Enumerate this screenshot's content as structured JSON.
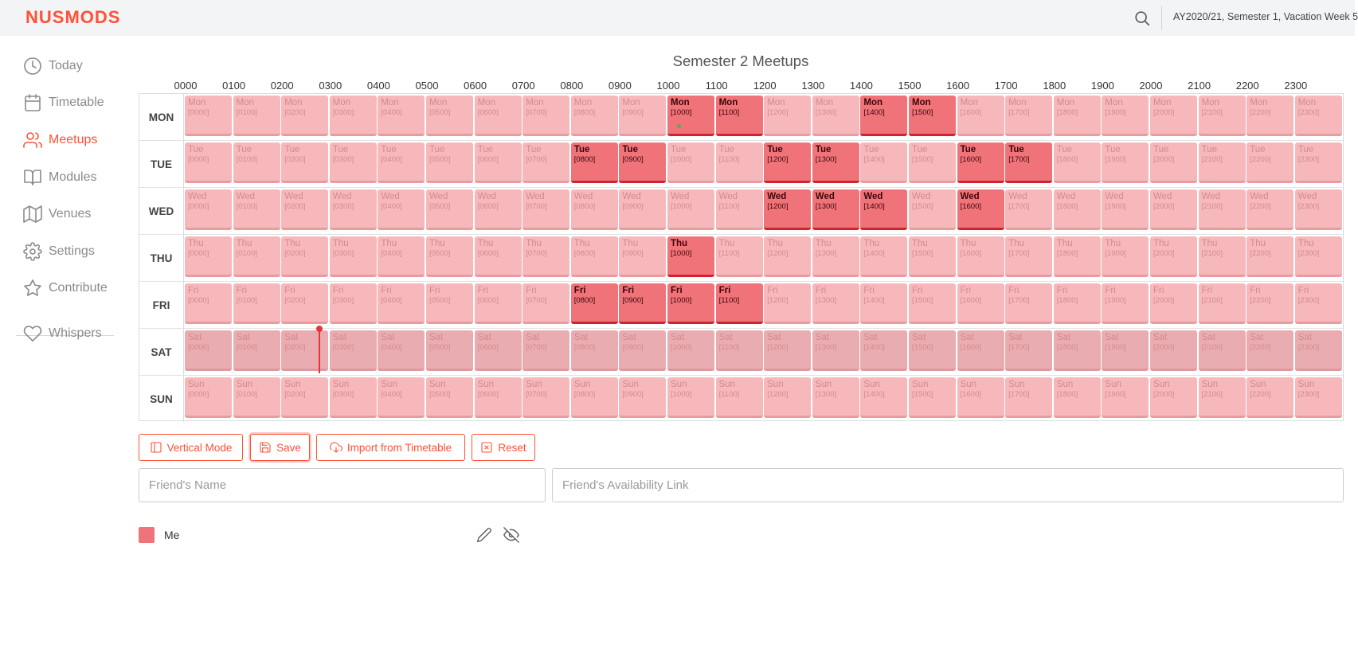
{
  "app": {
    "logo": "NUSMODS",
    "semester_label": "AY2020/21, Semester 1, Vacation Week 5",
    "accent_color": "#ff5138"
  },
  "sidebar": {
    "items": [
      {
        "label": "Today",
        "icon": "clock-icon",
        "active": false
      },
      {
        "label": "Timetable",
        "icon": "calendar-icon",
        "active": false
      },
      {
        "label": "Meetups",
        "icon": "users-icon",
        "active": true
      },
      {
        "label": "Modules",
        "icon": "book-icon",
        "active": false
      },
      {
        "label": "Venues",
        "icon": "map-icon",
        "active": false
      },
      {
        "label": "Settings",
        "icon": "gear-icon",
        "active": false
      },
      {
        "label": "Contribute",
        "icon": "star-icon",
        "active": false
      },
      {
        "label": "Whispers",
        "icon": "heart-icon",
        "active": false
      }
    ]
  },
  "meetups": {
    "title": "Semester 2 Meetups",
    "hours": [
      "0000",
      "0100",
      "0200",
      "0300",
      "0400",
      "0500",
      "0600",
      "0700",
      "0800",
      "0900",
      "1000",
      "1100",
      "1200",
      "1300",
      "1400",
      "1500",
      "1600",
      "1700",
      "1800",
      "1900",
      "2000",
      "2100",
      "2200",
      "2300"
    ],
    "days": [
      {
        "label": "MON",
        "short": "Mon",
        "busy": [
          "1000",
          "1100",
          "1400",
          "1500"
        ]
      },
      {
        "label": "TUE",
        "short": "Tue",
        "busy": [
          "0800",
          "0900",
          "1200",
          "1300",
          "1600",
          "1700"
        ]
      },
      {
        "label": "WED",
        "short": "Wed",
        "busy": [
          "1200",
          "1300",
          "1400",
          "1600"
        ]
      },
      {
        "label": "THU",
        "short": "Thu",
        "busy": [
          "1000"
        ]
      },
      {
        "label": "FRI",
        "short": "Fri",
        "busy": [
          "0800",
          "0900",
          "1000",
          "1100"
        ]
      },
      {
        "label": "SAT",
        "short": "Sat",
        "busy": []
      },
      {
        "label": "SUN",
        "short": "Sun",
        "busy": []
      }
    ]
  },
  "buttons": {
    "vertical_mode": "Vertical Mode",
    "save": "Save",
    "import": "Import from Timetable",
    "reset": "Reset"
  },
  "inputs": {
    "friend_name_placeholder": "Friend's Name",
    "friend_link_placeholder": "Friend's Availability Link"
  },
  "legend": {
    "name": "Me",
    "color": "#f1737a"
  }
}
